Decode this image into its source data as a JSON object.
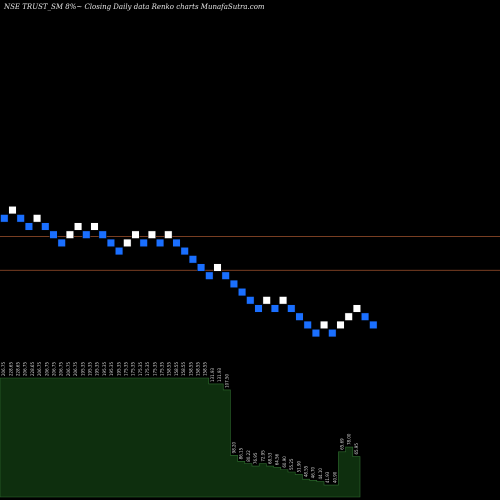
{
  "header": {
    "title": "NSE TRUST_SM 8%~  Closing Daily data  Renko  charts MunafaSutra.com"
  },
  "colors": {
    "background": "#000000",
    "up_brick": "#ffffff",
    "down_brick": "#1a6fff",
    "brick_border": "#000000",
    "level_line": "#a0522d",
    "volume_fill": "#0e2f0e",
    "volume_edge": "#2f6d2f"
  },
  "chart_data": {
    "type": "renko",
    "x_axis": "brick index",
    "y_axis": "price (inverted pixel scale, relative)",
    "bricks": [
      {
        "dir": "down",
        "level": 0
      },
      {
        "dir": "up",
        "level": -1
      },
      {
        "dir": "down",
        "level": 0
      },
      {
        "dir": "down",
        "level": 1
      },
      {
        "dir": "up",
        "level": 0
      },
      {
        "dir": "down",
        "level": 1
      },
      {
        "dir": "down",
        "level": 2
      },
      {
        "dir": "down",
        "level": 3
      },
      {
        "dir": "up",
        "level": 2
      },
      {
        "dir": "up",
        "level": 1
      },
      {
        "dir": "down",
        "level": 2
      },
      {
        "dir": "up",
        "level": 1
      },
      {
        "dir": "down",
        "level": 2
      },
      {
        "dir": "down",
        "level": 3
      },
      {
        "dir": "down",
        "level": 4
      },
      {
        "dir": "up",
        "level": 3
      },
      {
        "dir": "up",
        "level": 2
      },
      {
        "dir": "down",
        "level": 3
      },
      {
        "dir": "up",
        "level": 2
      },
      {
        "dir": "down",
        "level": 3
      },
      {
        "dir": "up",
        "level": 2
      },
      {
        "dir": "down",
        "level": 3
      },
      {
        "dir": "down",
        "level": 4
      },
      {
        "dir": "down",
        "level": 5
      },
      {
        "dir": "down",
        "level": 6
      },
      {
        "dir": "down",
        "level": 7
      },
      {
        "dir": "up",
        "level": 6
      },
      {
        "dir": "down",
        "level": 7
      },
      {
        "dir": "down",
        "level": 8
      },
      {
        "dir": "down",
        "level": 9
      },
      {
        "dir": "down",
        "level": 10
      },
      {
        "dir": "down",
        "level": 11
      },
      {
        "dir": "up",
        "level": 10
      },
      {
        "dir": "down",
        "level": 11
      },
      {
        "dir": "up",
        "level": 10
      },
      {
        "dir": "down",
        "level": 11
      },
      {
        "dir": "down",
        "level": 12
      },
      {
        "dir": "down",
        "level": 13
      },
      {
        "dir": "down",
        "level": 14
      },
      {
        "dir": "up",
        "level": 13
      },
      {
        "dir": "down",
        "level": 14
      },
      {
        "dir": "up",
        "level": 13
      },
      {
        "dir": "up",
        "level": 12
      },
      {
        "dir": "up",
        "level": 11
      },
      {
        "dir": "down",
        "level": 12
      },
      {
        "dir": "down",
        "level": 13
      }
    ],
    "level_lines": [
      2.2,
      6.3
    ],
    "volume_labels": [
      "206.75",
      "228.65",
      "228.65",
      "206.75",
      "228.65",
      "206.75",
      "206.75",
      "206.75",
      "206.75",
      "206.75",
      "206.75",
      "195.35",
      "195.35",
      "195.35",
      "195.35",
      "195.35",
      "195.35",
      "175.35",
      "175.35",
      "175.35",
      "175.35",
      "175.35",
      "175.35",
      "158.55",
      "158.55",
      "158.55",
      "158.55",
      "158.55",
      "158.55",
      "131.93",
      "131.93",
      "107.50",
      "98.20",
      "86.15",
      "80.22",
      "76.95",
      "72.95",
      "68.53",
      "64.56",
      "60.90",
      "55.25",
      "51.90",
      "48.55",
      "46.70",
      "44.10",
      "41.93",
      "40.90",
      "65.69",
      "78.00",
      "65.95"
    ],
    "volume": [
      1.0,
      1.0,
      1.0,
      1.0,
      1.0,
      1.0,
      1.0,
      1.0,
      1.0,
      1.0,
      1.0,
      1.0,
      1.0,
      1.0,
      1.0,
      1.0,
      1.0,
      1.0,
      1.0,
      1.0,
      1.0,
      1.0,
      1.0,
      1.0,
      1.0,
      1.0,
      1.0,
      1.0,
      1.0,
      0.95,
      0.95,
      0.9,
      0.35,
      0.3,
      0.28,
      0.26,
      0.28,
      0.26,
      0.25,
      0.23,
      0.21,
      0.19,
      0.15,
      0.14,
      0.13,
      0.1,
      0.1,
      0.38,
      0.42,
      0.34
    ]
  }
}
